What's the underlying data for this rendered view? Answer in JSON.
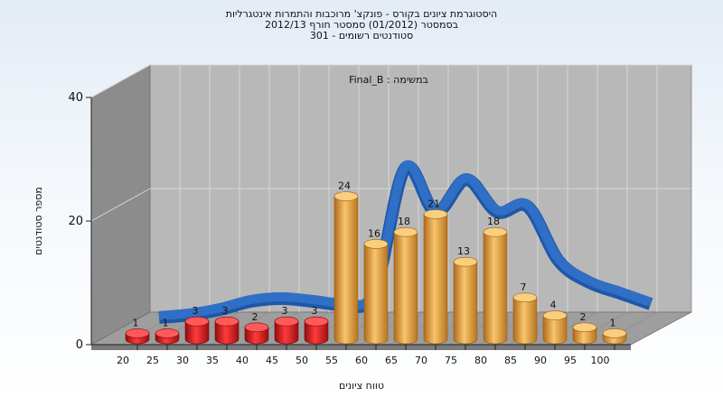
{
  "chart_data": {
    "type": "bar",
    "title_lines": [
      "היסטוגרמת ציונים בקורס - פונקצ' מרוכבות והתמרות אינטגרליות",
      "בסמסטר (01/2012) סמסטר חורף 2012/13",
      "סטודנטים רשומים - 301"
    ],
    "annotation": "במשימה : Final_B",
    "xlabel": "טווח ציונים",
    "ylabel": "מספר סטודנטים",
    "categories": [
      "20",
      "25",
      "30",
      "35",
      "40",
      "45",
      "50",
      "55",
      "60",
      "65",
      "70",
      "75",
      "80",
      "85",
      "90",
      "95",
      "100"
    ],
    "values": [
      1,
      1,
      3,
      3,
      2,
      3,
      3,
      24,
      16,
      18,
      21,
      13,
      18,
      7,
      4,
      2,
      1
    ],
    "yticks": [
      0,
      20,
      40
    ],
    "ylim": [
      0,
      40
    ],
    "curve": [
      0.5,
      1,
      2,
      3.5,
      4,
      3.5,
      3,
      5,
      28,
      20,
      26,
      20,
      21,
      11,
      7,
      5,
      3
    ],
    "colors": {
      "fail": "#e0181c",
      "pass": "#e8a445",
      "curve": "#2f6fc6",
      "wall": "#b7b7b7",
      "side_wall": "#8f8f8f",
      "floor": "#9a9a9a"
    },
    "fail_last_index": 6
  }
}
